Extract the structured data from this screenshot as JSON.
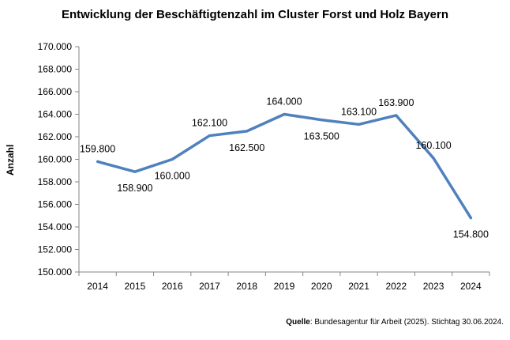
{
  "chart_data": {
    "type": "line",
    "title": "Entwicklung der Beschäftigtenzahl im Cluster Forst und Holz Bayern",
    "xlabel": "",
    "ylabel": "Anzahl",
    "ylim": [
      150000,
      170000
    ],
    "y_ticks": [
      "150.000",
      "152.000",
      "154.000",
      "156.000",
      "158.000",
      "160.000",
      "162.000",
      "164.000",
      "166.000",
      "168.000",
      "170.000"
    ],
    "categories": [
      "2014",
      "2015",
      "2016",
      "2017",
      "2018",
      "2019",
      "2020",
      "2021",
      "2022",
      "2023",
      "2024"
    ],
    "series": [
      {
        "values": [
          159800,
          158900,
          160000,
          162100,
          162500,
          164000,
          163500,
          163100,
          163900,
          160100,
          154800
        ],
        "labels": [
          "159.800",
          "158.900",
          "160.000",
          "162.100",
          "162.500",
          "164.000",
          "163.500",
          "163.100",
          "163.900",
          "160.100",
          "154.800"
        ],
        "color": "#4f81bd"
      }
    ],
    "grid": false,
    "legend": "none"
  },
  "source": {
    "label": "Quelle",
    "text": ": Bundesagentur für Arbeit (2025). Stichtag 30.06.2024."
  }
}
